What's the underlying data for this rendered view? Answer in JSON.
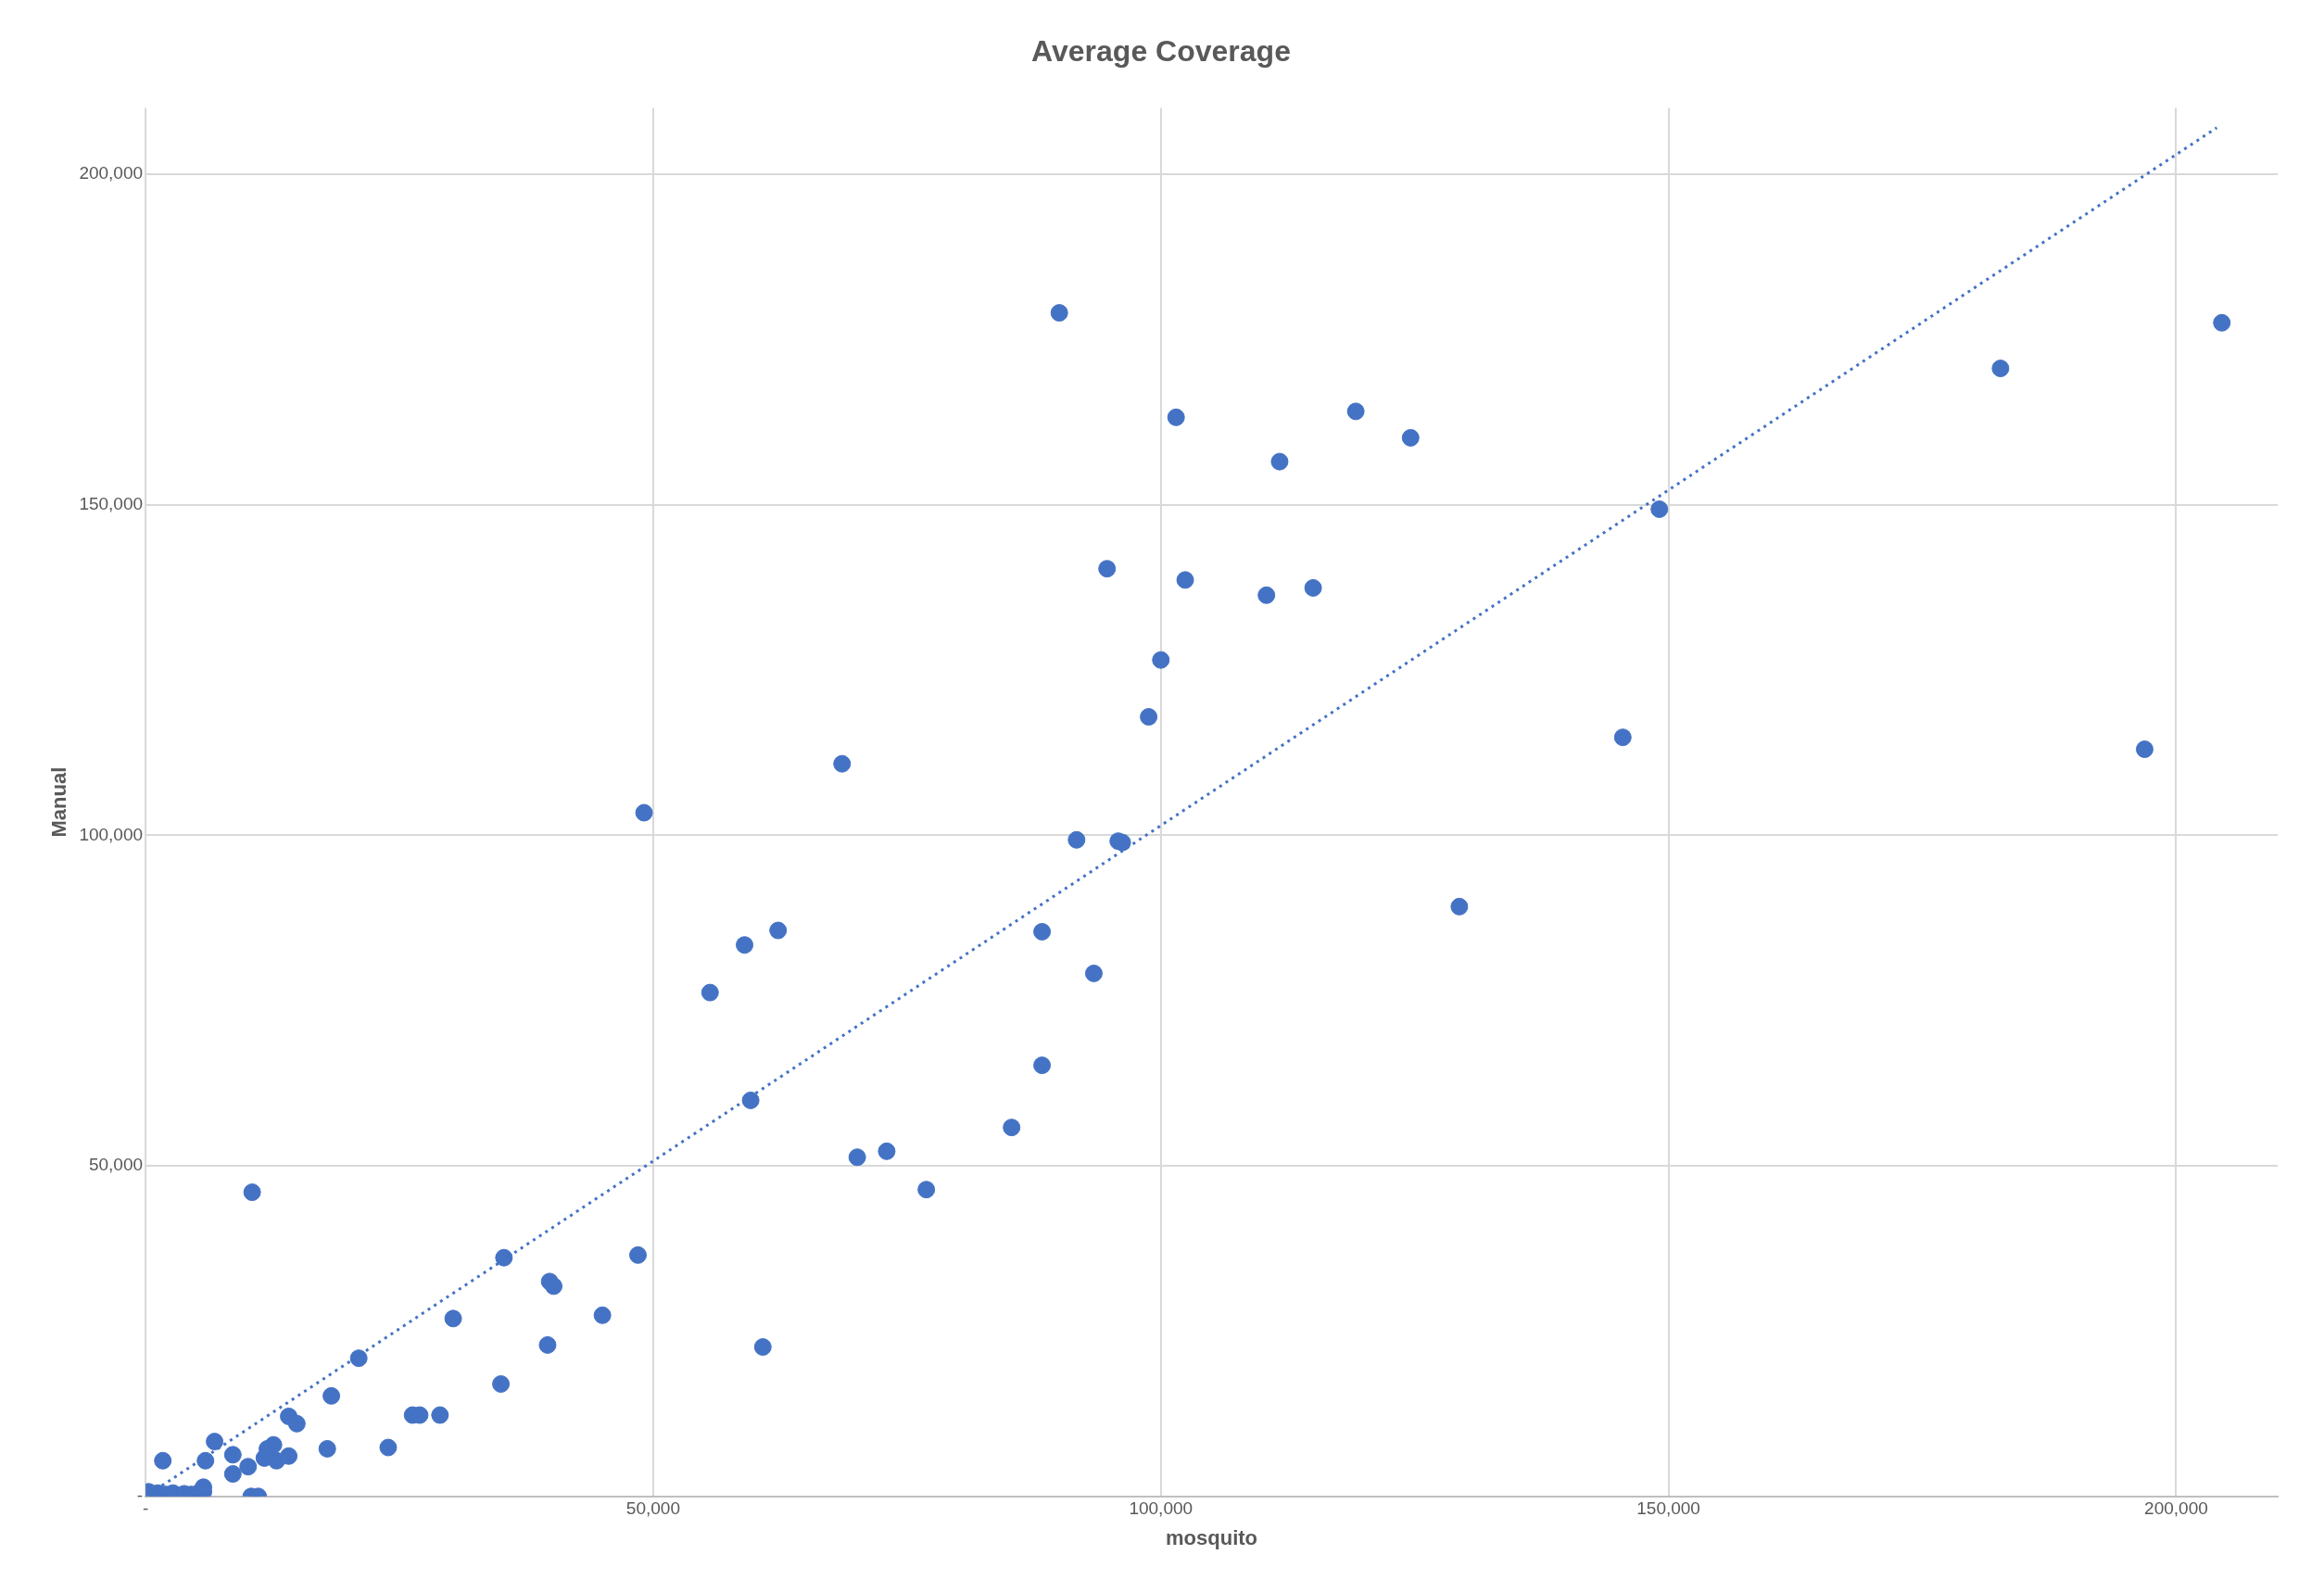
{
  "chart_data": {
    "type": "scatter",
    "title": "Average Coverage",
    "xlabel": "mosquito",
    "ylabel": "Manual",
    "xlim": [
      0,
      210000
    ],
    "ylim": [
      0,
      210000
    ],
    "xticks": [
      {
        "value": 0,
        "label": "-"
      },
      {
        "value": 50000,
        "label": "50,000"
      },
      {
        "value": 100000,
        "label": "100,000"
      },
      {
        "value": 150000,
        "label": "150,000"
      },
      {
        "value": 200000,
        "label": "200,000"
      }
    ],
    "yticks": [
      {
        "value": 0,
        "label": "-"
      },
      {
        "value": 50000,
        "label": "50,000"
      },
      {
        "value": 100000,
        "label": "100,000"
      },
      {
        "value": 150000,
        "label": "150,000"
      },
      {
        "value": 200000,
        "label": "200,000"
      }
    ],
    "grid": true,
    "legend": false,
    "marker": "circle",
    "series": [
      {
        "color": "#4472c4",
        "x": [
          90000,
          204500,
          182700,
          119200,
          101500,
          124600,
          111700,
          149100,
          94700,
          102400,
          115000,
          110400,
          100000,
          98800,
          145500,
          196900,
          68600,
          49100,
          91700,
          95800,
          96200,
          129400,
          62300,
          59000,
          88300,
          55600,
          93400,
          88300,
          59600,
          85300,
          73000,
          70100,
          76900,
          10500,
          35300,
          48500,
          39800,
          40200,
          45000,
          30300,
          21000,
          39600,
          60800,
          35000,
          18300,
          14100,
          14900,
          26300,
          27000,
          29000,
          6800,
          23900,
          17900,
          12600,
          12000,
          1700,
          5900,
          8600,
          11700,
          12900,
          14100,
          8600,
          10100,
          10400,
          11100,
          300,
          1200,
          2000,
          2700,
          3800,
          4500,
          5300,
          5700,
          5700
        ],
        "values": [
          179000,
          177500,
          170600,
          164100,
          163200,
          160100,
          156500,
          149300,
          140300,
          138600,
          137400,
          136300,
          126500,
          117900,
          114800,
          113000,
          110800,
          103400,
          99300,
          99100,
          98900,
          89200,
          85600,
          83400,
          85400,
          76200,
          79100,
          65200,
          59900,
          55800,
          52200,
          51300,
          46400,
          46000,
          36100,
          36500,
          32500,
          31800,
          27400,
          26900,
          20900,
          22900,
          22600,
          17000,
          15200,
          12100,
          11000,
          12300,
          12300,
          12300,
          8300,
          7400,
          7200,
          7800,
          7200,
          5400,
          5400,
          6300,
          5800,
          5400,
          6100,
          3400,
          4500,
          0,
          0,
          700,
          500,
          300,
          500,
          400,
          300,
          600,
          1400,
          700
        ]
      },
      {
        "type": "line",
        "color": "#4472c4",
        "line_style": "dotted",
        "marker": "none",
        "x": [
          1000,
          204000
        ],
        "values": [
          1000,
          207000
        ]
      }
    ]
  }
}
